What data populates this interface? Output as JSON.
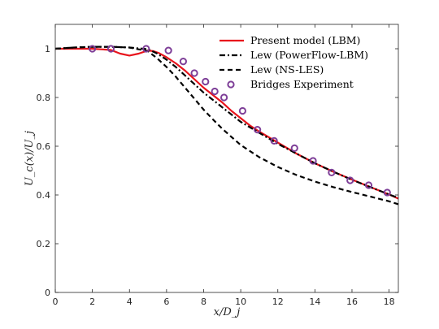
{
  "chart_data": {
    "type": "line",
    "xlabel": "x/D_j",
    "ylabel": "U_c(x)/U_j",
    "xlim": [
      0,
      18.5
    ],
    "ylim": [
      0,
      1.1
    ],
    "xticks": [
      0,
      2,
      4,
      6,
      8,
      10,
      12,
      14,
      16,
      18
    ],
    "yticks": [
      0,
      0.2,
      0.4,
      0.6,
      0.8,
      1
    ],
    "xtick_labels": [
      "0",
      "2",
      "4",
      "6",
      "8",
      "10",
      "12",
      "14",
      "16",
      "18"
    ],
    "ytick_labels": [
      "0",
      "0.2",
      "0.4",
      "0.6",
      "0.8",
      "1"
    ],
    "grid": false,
    "legend_position": "top-right",
    "series": [
      {
        "name": "Present model (LBM)",
        "style": "solid",
        "color": "#e8141c",
        "x": [
          0,
          1,
          2,
          3,
          3.5,
          4,
          4.5,
          5,
          5.3,
          5.6,
          6,
          6.5,
          7,
          7.5,
          8,
          8.5,
          9,
          9.5,
          10,
          10.5,
          11,
          12,
          13,
          14,
          15,
          16,
          17,
          18,
          18.5
        ],
        "y": [
          1.0,
          1.0,
          1.0,
          0.995,
          0.98,
          0.972,
          0.98,
          0.993,
          0.99,
          0.982,
          0.965,
          0.94,
          0.91,
          0.875,
          0.84,
          0.81,
          0.78,
          0.745,
          0.715,
          0.685,
          0.66,
          0.615,
          0.57,
          0.53,
          0.495,
          0.463,
          0.432,
          0.402,
          0.385
        ]
      },
      {
        "name": "Lew (PowerFlow-LBM)",
        "style": "dashdot",
        "color": "#000000",
        "x": [
          0,
          1,
          2,
          3,
          4,
          5,
          5.5,
          6,
          6.5,
          7,
          7.5,
          8,
          8.5,
          9,
          9.5,
          10,
          11,
          12,
          13,
          14,
          15,
          16,
          17,
          18,
          18.5
        ],
        "y": [
          1.0,
          1.005,
          1.008,
          1.008,
          1.005,
          0.998,
          0.98,
          0.955,
          0.925,
          0.89,
          0.855,
          0.82,
          0.79,
          0.76,
          0.73,
          0.7,
          0.655,
          0.61,
          0.57,
          0.53,
          0.495,
          0.462,
          0.432,
          0.402,
          0.388
        ]
      },
      {
        "name": "Lew (NS-LES)",
        "style": "dashed",
        "color": "#000000",
        "x": [
          0,
          1,
          2,
          3,
          4,
          5,
          5.5,
          6,
          6.5,
          7,
          7.5,
          8,
          8.5,
          9,
          9.5,
          10,
          11,
          12,
          13,
          14,
          15,
          16,
          17,
          18,
          18.5
        ],
        "y": [
          1.0,
          1.005,
          1.008,
          1.008,
          1.005,
          0.99,
          0.96,
          0.925,
          0.885,
          0.84,
          0.795,
          0.75,
          0.71,
          0.672,
          0.638,
          0.605,
          0.555,
          0.515,
          0.482,
          0.455,
          0.432,
          0.412,
          0.393,
          0.374,
          0.362
        ]
      },
      {
        "name": "Bridges Experiment",
        "style": "markers",
        "color": "#7e3f98",
        "x": [
          2,
          3,
          4.9,
          6.1,
          6.9,
          7.5,
          8.1,
          8.6,
          9.1,
          10.1,
          10.9,
          11.8,
          12.9,
          13.9,
          14.9,
          15.9,
          16.9,
          17.9
        ],
        "y": [
          1.0,
          1.0,
          1.0,
          0.993,
          0.948,
          0.9,
          0.865,
          0.825,
          0.8,
          0.745,
          0.668,
          0.622,
          0.592,
          0.54,
          0.492,
          0.46,
          0.44,
          0.41
        ]
      }
    ]
  }
}
